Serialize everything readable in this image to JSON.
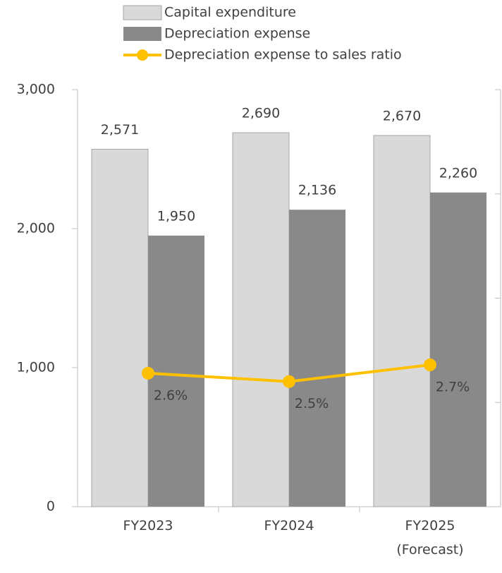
{
  "chart_data": {
    "type": "bar-line",
    "categories": [
      "FY2023",
      "FY2024",
      "FY2025\n(Forecast)"
    ],
    "series": [
      {
        "name": "Capital expenditure",
        "type": "bar",
        "color": "#d9d9d9",
        "values": [
          2571,
          2690,
          2670
        ],
        "value_labels": [
          "2,571",
          "2,690",
          "2,670"
        ]
      },
      {
        "name": "Depreciation expense",
        "type": "bar",
        "color": "#898989",
        "values": [
          1950,
          2136,
          2260
        ],
        "value_labels": [
          "1,950",
          "2,136",
          "2,260"
        ]
      },
      {
        "name": "Depreciation expense to sales ratio",
        "type": "line",
        "axis": "y2",
        "color": "#ffc000",
        "values": [
          2.6,
          2.5,
          2.7
        ],
        "value_labels": [
          "2.6%",
          "2.5%",
          "2.7%"
        ]
      }
    ],
    "ylim": [
      0,
      3000
    ],
    "yticks": [
      {
        "value": 0,
        "label": "0"
      },
      {
        "value": 1000,
        "label": "1,000"
      },
      {
        "value": 2000,
        "label": "2,000"
      },
      {
        "value": 3000,
        "label": "3,000"
      }
    ],
    "y2lim": [
      1,
      6
    ],
    "y2ticks": [
      1,
      2.25,
      3.5,
      4.75,
      6
    ],
    "legend": "top"
  }
}
